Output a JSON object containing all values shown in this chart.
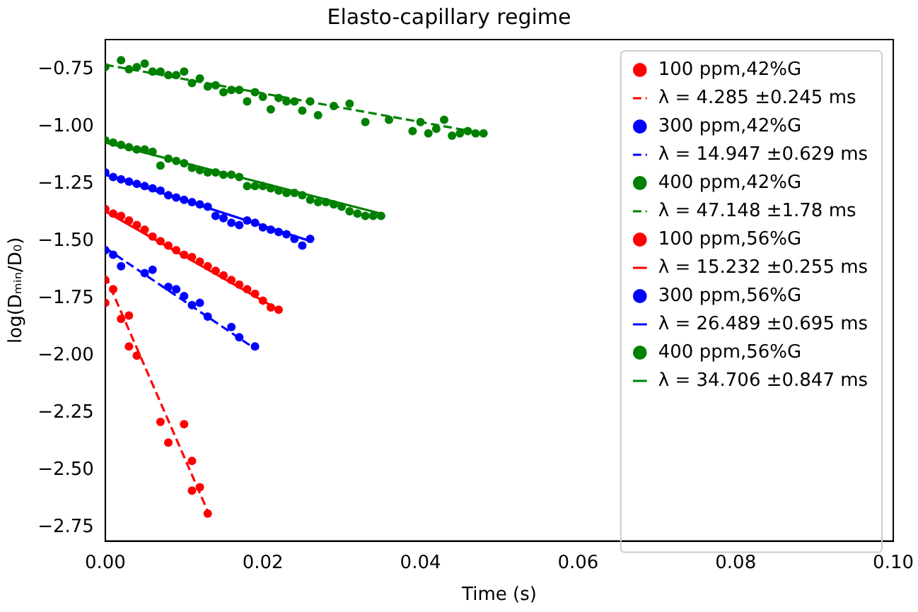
{
  "chart_data": {
    "type": "scatter",
    "title": "Elasto-capillary regime",
    "xlabel": "Time (s)",
    "ylabel": "log(Dₘᵢₙ/D₀)",
    "xlim": [
      0,
      0.1
    ],
    "ylim": [
      -2.81,
      -0.62
    ],
    "xticks": [
      {
        "value": 0,
        "label": "0.00"
      },
      {
        "value": 0.02,
        "label": "0.02"
      },
      {
        "value": 0.04,
        "label": "0.04"
      },
      {
        "value": 0.06,
        "label": "0.06"
      },
      {
        "value": 0.08,
        "label": "0.08"
      },
      {
        "value": 0.1,
        "label": "0.10"
      }
    ],
    "yticks": [
      {
        "value": -0.75,
        "label": "−0.75"
      },
      {
        "value": -1.0,
        "label": "−1.00"
      },
      {
        "value": -1.25,
        "label": "−1.25"
      },
      {
        "value": -1.5,
        "label": "−1.50"
      },
      {
        "value": -1.75,
        "label": "−1.75"
      },
      {
        "value": -2.0,
        "label": "−2.00"
      },
      {
        "value": -2.25,
        "label": "−2.25"
      },
      {
        "value": -2.5,
        "label": "−2.50"
      },
      {
        "value": -2.75,
        "label": "−2.75"
      }
    ],
    "grid": false,
    "legend": "top right",
    "marker": "circle",
    "series": [
      {
        "type": "scatter",
        "name": "100 ppm,42%G",
        "color": "#ff0000",
        "x": [
          0,
          0,
          0.001,
          0.002,
          0.003,
          0.003,
          0.004,
          0.007,
          0.008,
          0.01,
          0.011,
          0.011,
          0.012,
          0.013
        ],
        "values": [
          -1.67,
          -1.77,
          -1.71,
          -1.84,
          -1.825,
          -1.96,
          -2.0,
          -2.29,
          -2.38,
          -2.3,
          -2.46,
          -2.59,
          -2.575,
          -2.69
        ]
      },
      {
        "type": "line",
        "name": "λ = 4.285 ±0.245 ms",
        "color": "#ff0000",
        "line_style": "dashed",
        "marker": "none",
        "x": [
          0,
          0.013
        ],
        "values": [
          -1.65,
          -2.68
        ]
      },
      {
        "type": "scatter",
        "name": "300 ppm,42%G",
        "color": "#0000ff",
        "x": [
          0,
          0.001,
          0.002,
          0.005,
          0.006,
          0.008,
          0.009,
          0.01,
          0.011,
          0.012,
          0.013,
          0.016,
          0.017,
          0.019
        ],
        "values": [
          -1.54,
          -1.56,
          -1.61,
          -1.64,
          -1.625,
          -1.7,
          -1.71,
          -1.74,
          -1.78,
          -1.77,
          -1.83,
          -1.875,
          -1.92,
          -1.96
        ]
      },
      {
        "type": "line",
        "name": "λ = 14.947 ±0.629 ms",
        "color": "#0000ff",
        "line_style": "dashed",
        "marker": "none",
        "x": [
          0,
          0.019
        ],
        "values": [
          -1.53,
          -1.97
        ]
      },
      {
        "type": "scatter",
        "name": "400 ppm,42%G",
        "color": "#008000",
        "x": [
          0,
          0.002,
          0.003,
          0.004,
          0.005,
          0.006,
          0.007,
          0.008,
          0.009,
          0.01,
          0.011,
          0.012,
          0.013,
          0.014,
          0.015,
          0.016,
          0.017,
          0.018,
          0.019,
          0.02,
          0.021,
          0.022,
          0.023,
          0.024,
          0.025,
          0.026,
          0.027,
          0.029,
          0.031,
          0.033,
          0.036,
          0.039,
          0.04,
          0.041,
          0.042,
          0.043,
          0.044,
          0.045,
          0.046,
          0.047,
          0.048
        ],
        "values": [
          -0.74,
          -0.71,
          -0.75,
          -0.74,
          -0.725,
          -0.76,
          -0.76,
          -0.775,
          -0.775,
          -0.76,
          -0.81,
          -0.79,
          -0.825,
          -0.82,
          -0.85,
          -0.84,
          -0.84,
          -0.89,
          -0.85,
          -0.87,
          -0.925,
          -0.875,
          -0.89,
          -0.89,
          -0.93,
          -0.89,
          -0.95,
          -0.91,
          -0.9,
          -0.98,
          -0.97,
          -1.02,
          -0.98,
          -1.03,
          -1.01,
          -0.97,
          -1.04,
          -1.03,
          -1.02,
          -1.03,
          -1.03
        ]
      },
      {
        "type": "line",
        "name": "λ = 47.148 ±1.78 ms",
        "color": "#008000",
        "line_style": "dashed",
        "marker": "none",
        "x": [
          0,
          0.048
        ],
        "values": [
          -0.73,
          -1.03
        ]
      },
      {
        "type": "scatter",
        "name": "100 ppm,56%G",
        "color": "#ff0000",
        "x": [
          0,
          0.001,
          0.002,
          0.003,
          0.004,
          0.005,
          0.006,
          0.007,
          0.008,
          0.009,
          0.01,
          0.011,
          0.012,
          0.013,
          0.014,
          0.015,
          0.016,
          0.017,
          0.018,
          0.019,
          0.02,
          0.021,
          0.022
        ],
        "values": [
          -1.36,
          -1.38,
          -1.39,
          -1.41,
          -1.43,
          -1.45,
          -1.48,
          -1.5,
          -1.52,
          -1.54,
          -1.56,
          -1.57,
          -1.59,
          -1.61,
          -1.63,
          -1.65,
          -1.67,
          -1.69,
          -1.71,
          -1.73,
          -1.76,
          -1.79,
          -1.8
        ]
      },
      {
        "type": "line",
        "name": "λ = 15.232 ±0.255 ms",
        "color": "#ff0000",
        "line_style": "solid",
        "marker": "none",
        "x": [
          0,
          0.022
        ],
        "values": [
          -1.37,
          -1.8
        ]
      },
      {
        "type": "scatter",
        "name": "300 ppm,56%G",
        "color": "#0000ff",
        "x": [
          0,
          0.001,
          0.002,
          0.003,
          0.004,
          0.005,
          0.006,
          0.007,
          0.008,
          0.009,
          0.01,
          0.011,
          0.012,
          0.013,
          0.014,
          0.015,
          0.016,
          0.017,
          0.018,
          0.019,
          0.02,
          0.021,
          0.022,
          0.023,
          0.024,
          0.025,
          0.026
        ],
        "values": [
          -1.2,
          -1.22,
          -1.23,
          -1.24,
          -1.25,
          -1.26,
          -1.27,
          -1.28,
          -1.3,
          -1.31,
          -1.32,
          -1.33,
          -1.34,
          -1.35,
          -1.39,
          -1.4,
          -1.42,
          -1.43,
          -1.41,
          -1.42,
          -1.44,
          -1.45,
          -1.46,
          -1.47,
          -1.49,
          -1.52,
          -1.49
        ]
      },
      {
        "type": "line",
        "name": "λ = 26.489 ±0.695 ms",
        "color": "#0000ff",
        "line_style": "solid",
        "marker": "none",
        "x": [
          0,
          0.026
        ],
        "values": [
          -1.21,
          -1.5
        ]
      },
      {
        "type": "scatter",
        "name": "400 ppm,56%G",
        "color": "#008000",
        "x": [
          0,
          0.001,
          0.002,
          0.003,
          0.004,
          0.005,
          0.006,
          0.007,
          0.008,
          0.009,
          0.01,
          0.011,
          0.012,
          0.013,
          0.014,
          0.015,
          0.016,
          0.017,
          0.018,
          0.019,
          0.02,
          0.021,
          0.022,
          0.023,
          0.024,
          0.025,
          0.026,
          0.027,
          0.028,
          0.029,
          0.03,
          0.031,
          0.032,
          0.033,
          0.034,
          0.035
        ],
        "values": [
          -1.06,
          -1.07,
          -1.08,
          -1.09,
          -1.1,
          -1.1,
          -1.11,
          -1.17,
          -1.14,
          -1.15,
          -1.16,
          -1.18,
          -1.19,
          -1.2,
          -1.2,
          -1.21,
          -1.21,
          -1.22,
          -1.26,
          -1.26,
          -1.26,
          -1.27,
          -1.28,
          -1.29,
          -1.29,
          -1.3,
          -1.32,
          -1.33,
          -1.33,
          -1.34,
          -1.35,
          -1.37,
          -1.38,
          -1.39,
          -1.39,
          -1.39
        ]
      },
      {
        "type": "line",
        "name": "λ = 34.706 ±0.847 ms",
        "color": "#008000",
        "line_style": "solid",
        "marker": "none",
        "x": [
          0,
          0.035
        ],
        "values": [
          -1.07,
          -1.38
        ]
      }
    ]
  }
}
